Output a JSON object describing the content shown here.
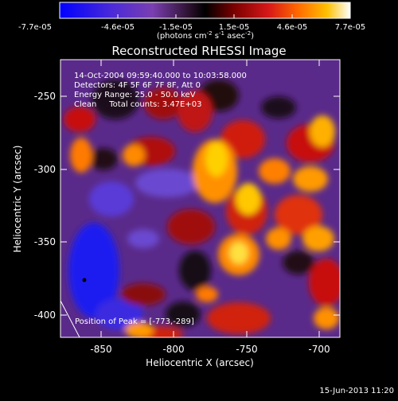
{
  "colorbar": {
    "tick_labels": [
      "-7.7e-05",
      "-4.6e-05",
      "-1.5e-05",
      "1.5e-05",
      "4.6e-05",
      "7.7e-05"
    ],
    "units_main": "(photons cm",
    "units_exp1": "-2",
    "units_mid": " s",
    "units_exp2": "-1",
    "units_end": " asec",
    "units_exp3": "-2",
    "units_close": ")",
    "colors": [
      "#0000ff",
      "#5a2ccc",
      "#7a3fb0",
      "#3a1a3a",
      "#000000",
      "#7a0000",
      "#d01010",
      "#ff6a00",
      "#ffc000",
      "#ffffff"
    ]
  },
  "title": "Reconstructed RHESSI Image",
  "annotation": {
    "line1": "14-Oct-2004 09:59:40.000 to 10:03:58.000",
    "line2": "Detectors: 4F 5F 6F 7F 8F, Att 0",
    "line3": "Energy Range: 25.0 - 50.0 keV",
    "line4": "Clean     Total counts: 3.47E+03"
  },
  "peak_label": "Position of Peak = [-773,-289]",
  "axes": {
    "x_label": "Heliocentric X (arcsec)",
    "y_label": "Heliocentric Y (arcsec)",
    "x_ticks": [
      "-850",
      "-800",
      "-750",
      "-700"
    ],
    "y_ticks": [
      "-250",
      "-300",
      "-350",
      "-400"
    ]
  },
  "footer_date": "15-Jun-2013 11:20"
}
